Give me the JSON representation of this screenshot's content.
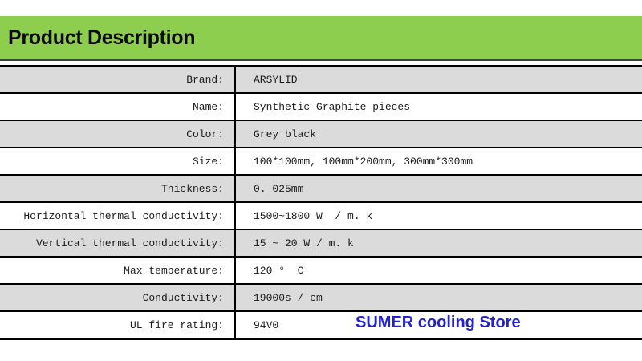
{
  "header": {
    "title": "Product Description",
    "bg_color": "#8dce4e",
    "text_color": "#0a0a0a"
  },
  "table": {
    "row_alt_color": "#dbdbdb",
    "border_color": "#000000",
    "rows": [
      {
        "label": "Brand:",
        "value": "ARSYLID"
      },
      {
        "label": "Name:",
        "value": "Synthetic Graphite pieces"
      },
      {
        "label": "Color:",
        "value": "Grey black"
      },
      {
        "label": "Size:",
        "value": "100*100mm, 100mm*200mm, 300mm*300mm"
      },
      {
        "label": "Thickness:",
        "value": "0. 025mm"
      },
      {
        "label": "Horizontal thermal conductivity:",
        "value": "1500~1800 W  / m. k"
      },
      {
        "label": "Vertical thermal conductivity:",
        "value": "15 ~ 20 W / m. k"
      },
      {
        "label": "Max temperature:",
        "value": "120 °  C"
      },
      {
        "label": "Conductivity:",
        "value": "19000s / cm"
      },
      {
        "label": "UL fire rating:",
        "value": "94V0"
      }
    ]
  },
  "watermark": {
    "text": "SUMER cooling Store",
    "color": "#2222cc"
  }
}
